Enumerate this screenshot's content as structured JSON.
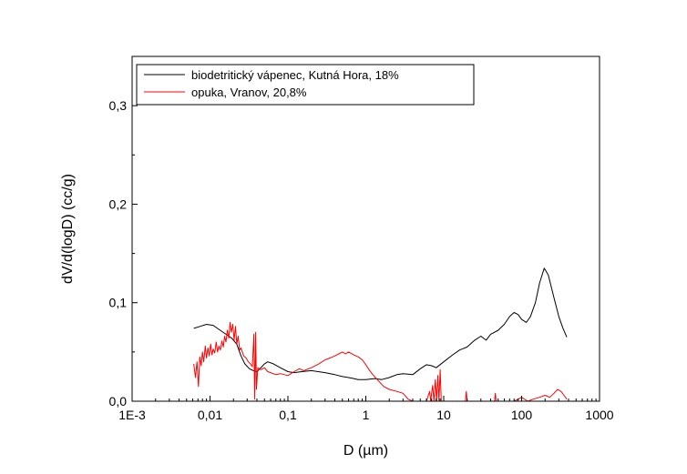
{
  "chart_data": {
    "type": "line",
    "xlabel": "D (µm)",
    "ylabel": "dV/d(logD) (cc/g)",
    "x_scale": "log",
    "xlim": [
      0.001,
      1000
    ],
    "ylim": [
      0,
      0.35
    ],
    "x_ticks": [
      0.001,
      0.01,
      0.1,
      1,
      10,
      100,
      1000
    ],
    "x_tick_labels": [
      "1E-3",
      "0,01",
      "0,1",
      "1",
      "10",
      "100",
      "1000"
    ],
    "y_ticks": [
      0,
      0.1,
      0.2,
      0.3
    ],
    "y_tick_labels": [
      "0,0",
      "0,1",
      "0,2",
      "0,3"
    ],
    "grid": false,
    "legend_position": "top-left",
    "series": [
      {
        "name": "biodetritický vápenec, Kutná Hora, 18%",
        "color": "#000000",
        "points": [
          [
            0.0062,
            0.074
          ],
          [
            0.0075,
            0.076
          ],
          [
            0.009,
            0.078
          ],
          [
            0.011,
            0.077
          ],
          [
            0.013,
            0.073
          ],
          [
            0.016,
            0.068
          ],
          [
            0.019,
            0.064
          ],
          [
            0.022,
            0.058
          ],
          [
            0.025,
            0.046
          ],
          [
            0.028,
            0.038
          ],
          [
            0.032,
            0.033
          ],
          [
            0.036,
            0.031
          ],
          [
            0.04,
            0.03
          ],
          [
            0.045,
            0.034
          ],
          [
            0.05,
            0.038
          ],
          [
            0.055,
            0.04
          ],
          [
            0.065,
            0.038
          ],
          [
            0.08,
            0.034
          ],
          [
            0.1,
            0.03
          ],
          [
            0.12,
            0.029
          ],
          [
            0.15,
            0.03
          ],
          [
            0.2,
            0.031
          ],
          [
            0.3,
            0.029
          ],
          [
            0.4,
            0.027
          ],
          [
            0.5,
            0.025
          ],
          [
            0.6,
            0.024
          ],
          [
            0.7,
            0.023
          ],
          [
            0.8,
            0.022
          ],
          [
            1.0,
            0.022
          ],
          [
            1.3,
            0.023
          ],
          [
            1.6,
            0.022
          ],
          [
            2.0,
            0.024
          ],
          [
            2.5,
            0.027
          ],
          [
            3.0,
            0.028
          ],
          [
            4.0,
            0.027
          ],
          [
            5.0,
            0.033
          ],
          [
            6.0,
            0.037
          ],
          [
            7.0,
            0.036
          ],
          [
            8.0,
            0.034
          ],
          [
            10.0,
            0.04
          ],
          [
            13.0,
            0.047
          ],
          [
            16.0,
            0.052
          ],
          [
            20.0,
            0.055
          ],
          [
            25.0,
            0.062
          ],
          [
            30.0,
            0.066
          ],
          [
            35.0,
            0.062
          ],
          [
            40.0,
            0.068
          ],
          [
            50.0,
            0.072
          ],
          [
            60.0,
            0.078
          ],
          [
            70.0,
            0.086
          ],
          [
            80.0,
            0.09
          ],
          [
            90.0,
            0.088
          ],
          [
            100.0,
            0.083
          ],
          [
            115.0,
            0.08
          ],
          [
            130.0,
            0.086
          ],
          [
            150.0,
            0.1
          ],
          [
            170.0,
            0.12
          ],
          [
            195.0,
            0.135
          ],
          [
            220.0,
            0.128
          ],
          [
            260.0,
            0.105
          ],
          [
            300.0,
            0.086
          ],
          [
            340.0,
            0.074
          ],
          [
            380.0,
            0.065
          ]
        ]
      },
      {
        "name": "opuka, Vranov, 20,8%",
        "color": "#ff0000",
        "points": [
          [
            0.0062,
            0.038
          ],
          [
            0.0065,
            0.024
          ],
          [
            0.0068,
            0.04
          ],
          [
            0.0071,
            0.015
          ],
          [
            0.0074,
            0.045
          ],
          [
            0.0077,
            0.036
          ],
          [
            0.008,
            0.05
          ],
          [
            0.0083,
            0.04
          ],
          [
            0.0087,
            0.056
          ],
          [
            0.009,
            0.044
          ],
          [
            0.0094,
            0.054
          ],
          [
            0.0098,
            0.046
          ],
          [
            0.0102,
            0.058
          ],
          [
            0.0106,
            0.047
          ],
          [
            0.011,
            0.053
          ],
          [
            0.0115,
            0.049
          ],
          [
            0.012,
            0.06
          ],
          [
            0.0125,
            0.05
          ],
          [
            0.013,
            0.056
          ],
          [
            0.0136,
            0.052
          ],
          [
            0.0142,
            0.061
          ],
          [
            0.0148,
            0.055
          ],
          [
            0.0154,
            0.066
          ],
          [
            0.016,
            0.06
          ],
          [
            0.0167,
            0.072
          ],
          [
            0.0174,
            0.064
          ],
          [
            0.0181,
            0.08
          ],
          [
            0.0188,
            0.07
          ],
          [
            0.0196,
            0.078
          ],
          [
            0.0204,
            0.062
          ],
          [
            0.0212,
            0.076
          ],
          [
            0.0221,
            0.058
          ],
          [
            0.023,
            0.066
          ],
          [
            0.024,
            0.052
          ],
          [
            0.025,
            0.054
          ],
          [
            0.027,
            0.046
          ],
          [
            0.029,
            0.044
          ],
          [
            0.031,
            0.04
          ],
          [
            0.033,
            0.038
          ],
          [
            0.035,
            0.035
          ],
          [
            0.0365,
            0.068
          ],
          [
            0.0375,
            0.002
          ],
          [
            0.0385,
            0.07
          ],
          [
            0.0395,
            0.012
          ],
          [
            0.041,
            0.034
          ],
          [
            0.045,
            0.032
          ],
          [
            0.05,
            0.034
          ],
          [
            0.055,
            0.03
          ],
          [
            0.06,
            0.029
          ],
          [
            0.07,
            0.027
          ],
          [
            0.08,
            0.028
          ],
          [
            0.09,
            0.027
          ],
          [
            0.1,
            0.026
          ],
          [
            0.12,
            0.03
          ],
          [
            0.14,
            0.033
          ],
          [
            0.16,
            0.031
          ],
          [
            0.2,
            0.034
          ],
          [
            0.25,
            0.038
          ],
          [
            0.3,
            0.042
          ],
          [
            0.35,
            0.044
          ],
          [
            0.4,
            0.046
          ],
          [
            0.45,
            0.048
          ],
          [
            0.5,
            0.05
          ],
          [
            0.55,
            0.048
          ],
          [
            0.6,
            0.05
          ],
          [
            0.7,
            0.047
          ],
          [
            0.8,
            0.045
          ],
          [
            0.9,
            0.042
          ],
          [
            1.0,
            0.037
          ],
          [
            1.1,
            0.032
          ],
          [
            1.2,
            0.028
          ],
          [
            1.4,
            0.022
          ],
          [
            1.7,
            0.015
          ],
          [
            2.0,
            0.012
          ],
          [
            2.5,
            0.01
          ],
          [
            3.0,
            0.008
          ],
          [
            3.5,
            0.002
          ],
          [
            4.0,
            0.0
          ],
          [
            6.0,
            0.0
          ],
          [
            6.6,
            0.01
          ],
          [
            6.8,
            0.0
          ],
          [
            7.2,
            0.016
          ],
          [
            7.5,
            0.0
          ],
          [
            7.8,
            0.022
          ],
          [
            8.1,
            0.0
          ],
          [
            8.4,
            0.026
          ],
          [
            8.7,
            0.0
          ],
          [
            9.0,
            0.032
          ],
          [
            9.3,
            0.0
          ],
          [
            12.0,
            0.0
          ],
          [
            19.0,
            0.0
          ],
          [
            19.5,
            0.01
          ],
          [
            20.0,
            0.0
          ],
          [
            30.0,
            0.0
          ],
          [
            45.0,
            0.0
          ],
          [
            46.0,
            0.008
          ],
          [
            47.0,
            0.0
          ],
          [
            80.0,
            0.0
          ],
          [
            90.0,
            0.002
          ],
          [
            100.0,
            0.004
          ],
          [
            120.0,
            0.0
          ],
          [
            140.0,
            0.002
          ],
          [
            170.0,
            0.004
          ],
          [
            200.0,
            0.006
          ],
          [
            230.0,
            0.004
          ],
          [
            260.0,
            0.008
          ],
          [
            290.0,
            0.012
          ],
          [
            320.0,
            0.01
          ],
          [
            350.0,
            0.006
          ],
          [
            380.0,
            0.002
          ]
        ]
      }
    ]
  }
}
